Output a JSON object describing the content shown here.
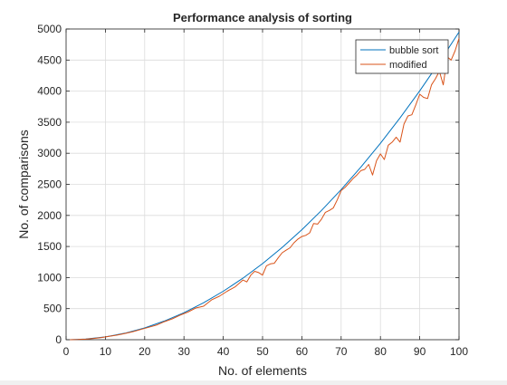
{
  "chart_data": {
    "type": "line",
    "title": "Performance analysis of sorting",
    "xlabel": "No. of elements",
    "ylabel": "No. of comparisons",
    "xlim": [
      0,
      100
    ],
    "ylim": [
      0,
      5000
    ],
    "xticks": [
      0,
      10,
      20,
      30,
      40,
      50,
      60,
      70,
      80,
      90,
      100
    ],
    "yticks": [
      0,
      500,
      1000,
      1500,
      2000,
      2500,
      3000,
      3500,
      4000,
      4500,
      5000
    ],
    "grid": true,
    "legend_position": "top-right",
    "series": [
      {
        "name": "bubble sort",
        "color": "#0072bd",
        "x": [
          1,
          5,
          10,
          15,
          20,
          25,
          30,
          35,
          40,
          45,
          50,
          55,
          60,
          65,
          70,
          75,
          80,
          85,
          90,
          95,
          100
        ],
        "y": [
          0,
          10,
          45,
          105,
          190,
          300,
          435,
          595,
          780,
          990,
          1225,
          1485,
          1770,
          2080,
          2415,
          2775,
          3160,
          3570,
          4005,
          4465,
          4950
        ]
      },
      {
        "name": "modified",
        "color": "#d95319",
        "x": [
          1,
          3,
          5,
          7,
          9,
          11,
          13,
          15,
          17,
          19,
          21,
          23,
          25,
          27,
          29,
          31,
          33,
          35,
          37,
          39,
          41,
          43,
          45,
          46,
          47,
          48,
          49,
          50,
          51,
          52,
          53,
          54,
          55,
          56,
          57,
          58,
          59,
          60,
          61,
          62,
          63,
          64,
          65,
          66,
          67,
          68,
          69,
          70,
          71,
          72,
          73,
          74,
          75,
          76,
          77,
          78,
          79,
          80,
          81,
          82,
          83,
          84,
          85,
          86,
          87,
          88,
          89,
          90,
          91,
          92,
          93,
          94,
          95,
          96,
          97,
          98,
          99,
          100
        ],
        "y": [
          0,
          3,
          9,
          20,
          35,
          55,
          75,
          100,
          130,
          165,
          200,
          235,
          290,
          335,
          395,
          445,
          510,
          540,
          640,
          700,
          780,
          850,
          960,
          930,
          1040,
          1100,
          1080,
          1040,
          1190,
          1220,
          1230,
          1320,
          1400,
          1440,
          1480,
          1560,
          1620,
          1660,
          1680,
          1720,
          1870,
          1860,
          1940,
          2050,
          2080,
          2120,
          2250,
          2400,
          2450,
          2520,
          2590,
          2650,
          2720,
          2740,
          2820,
          2650,
          2880,
          2990,
          2900,
          3130,
          3180,
          3260,
          3180,
          3470,
          3600,
          3620,
          3780,
          3950,
          3900,
          3880,
          4100,
          4200,
          4320,
          4100,
          4550,
          4500,
          4650,
          4850
        ]
      }
    ]
  }
}
